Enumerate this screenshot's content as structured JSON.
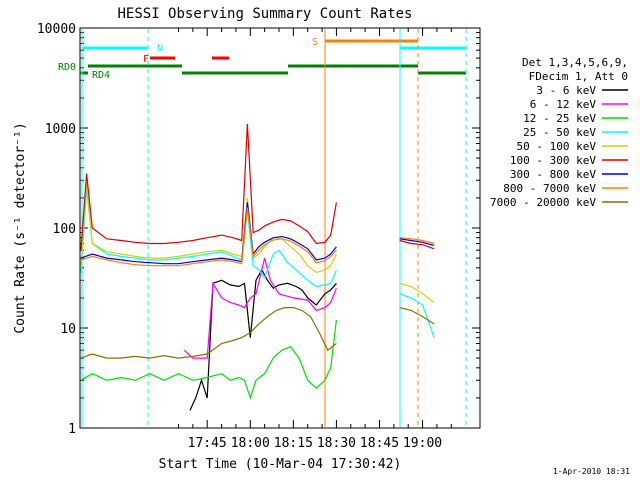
{
  "chart_data": {
    "type": "line",
    "title": "HESSI Observing Summary Count Rates",
    "xlabel": "Start Time (10-Mar-04 17:30:42)",
    "ylabel": "Count Rate (s⁻¹ detector⁻¹)",
    "x_ticks": [
      "17:45",
      "18:00",
      "18:15",
      "18:30",
      "18:45",
      "19:00"
    ],
    "x_tick_minutes": [
      795,
      810,
      825,
      840,
      855,
      870
    ],
    "xlim_minutes": [
      750.7,
      890
    ],
    "y_ticks": [
      "1",
      "10",
      "100",
      "1000",
      "10000"
    ],
    "y_tick_values": [
      1,
      10,
      100,
      1000,
      10000
    ],
    "ylim": [
      1,
      10000
    ],
    "y_scale": "log",
    "footer_date": "1-Apr-2010 18:31",
    "legend": {
      "header": [
        "Det 1,3,4,5,6,9,",
        "FDecim 1, Att 0"
      ],
      "entries": [
        {
          "label": "3 - 6 keV",
          "color": "#000000"
        },
        {
          "label": "6 - 12 keV",
          "color": "#ff00ff"
        },
        {
          "label": "12 - 25 keV",
          "color": "#00dd00"
        },
        {
          "label": "25 - 50 keV",
          "color": "#00ffff"
        },
        {
          "label": "50 - 100 keV",
          "color": "#d2d200"
        },
        {
          "label": "100 - 300 keV",
          "color": "#dd0000"
        },
        {
          "label": "300 - 800 keV",
          "color": "#0000dd"
        },
        {
          "label": "800 - 7000 keV",
          "color": "#ff8000"
        },
        {
          "label": "7000 - 20000 keV",
          "color": "#8b7000"
        }
      ]
    },
    "flags": [
      {
        "label": "N",
        "color": "#00ffff"
      },
      {
        "label": "F",
        "color": "#ff0000"
      },
      {
        "label": "S",
        "color": "#ff8000"
      },
      {
        "label": "RD0",
        "color": "#008000"
      },
      {
        "label": "RD4",
        "color": "#008000"
      }
    ],
    "series": [
      {
        "name": "3 - 6 keV",
        "color": "#000000",
        "points": [
          [
            789,
            1.5
          ],
          [
            791,
            2
          ],
          [
            793,
            3
          ],
          [
            795,
            2
          ],
          [
            797,
            28
          ],
          [
            800,
            30
          ],
          [
            803,
            27
          ],
          [
            806,
            26
          ],
          [
            808,
            28
          ],
          [
            810,
            8
          ],
          [
            812,
            30
          ],
          [
            814,
            38
          ],
          [
            816,
            30
          ],
          [
            818,
            25
          ],
          [
            820,
            27
          ],
          [
            823,
            28
          ],
          [
            826,
            26
          ],
          [
            828,
            24
          ],
          [
            830,
            20
          ],
          [
            833,
            17
          ],
          [
            836,
            22
          ],
          [
            838,
            24
          ],
          [
            840,
            28
          ]
        ]
      },
      {
        "name": "6 - 12 keV",
        "color": "#ff00ff",
        "points": [
          [
            787,
            6
          ],
          [
            790,
            5
          ],
          [
            793,
            5
          ],
          [
            795,
            5
          ],
          [
            797,
            28
          ],
          [
            800,
            20
          ],
          [
            803,
            18
          ],
          [
            806,
            17
          ],
          [
            808,
            16
          ],
          [
            810,
            20
          ],
          [
            812,
            22
          ],
          [
            815,
            50
          ],
          [
            817,
            30
          ],
          [
            820,
            22
          ],
          [
            825,
            20
          ],
          [
            830,
            19
          ],
          [
            833,
            15
          ],
          [
            836,
            16
          ],
          [
            838,
            18
          ],
          [
            840,
            25
          ]
        ]
      },
      {
        "name": "12 - 25 keV",
        "color": "#00dd00",
        "points": [
          [
            751,
            3
          ],
          [
            755,
            3.5
          ],
          [
            760,
            3
          ],
          [
            765,
            3.2
          ],
          [
            770,
            3
          ],
          [
            775,
            3.5
          ],
          [
            780,
            3
          ],
          [
            785,
            3.5
          ],
          [
            790,
            3
          ],
          [
            795,
            3.2
          ],
          [
            800,
            3.5
          ],
          [
            803,
            3
          ],
          [
            806,
            3.2
          ],
          [
            808,
            3
          ],
          [
            810,
            2
          ],
          [
            812,
            3
          ],
          [
            815,
            3.5
          ],
          [
            818,
            5
          ],
          [
            821,
            6
          ],
          [
            824,
            6.5
          ],
          [
            827,
            5
          ],
          [
            830,
            3
          ],
          [
            833,
            2.5
          ],
          [
            836,
            3
          ],
          [
            838,
            4
          ],
          [
            840,
            12
          ]
        ]
      },
      {
        "name": "25 - 50 keV",
        "color": "#00ffff",
        "points": [
          [
            751,
            35
          ],
          [
            753,
            250
          ],
          [
            755,
            70
          ],
          [
            760,
            55
          ],
          [
            765,
            52
          ],
          [
            770,
            50
          ],
          [
            775,
            48
          ],
          [
            780,
            48
          ],
          [
            785,
            50
          ],
          [
            790,
            52
          ],
          [
            795,
            55
          ],
          [
            800,
            58
          ],
          [
            804,
            52
          ],
          [
            807,
            48
          ],
          [
            809,
            150
          ],
          [
            811,
            42
          ],
          [
            813,
            38
          ],
          [
            815,
            32
          ],
          [
            818,
            55
          ],
          [
            820,
            60
          ],
          [
            823,
            45
          ],
          [
            826,
            38
          ],
          [
            830,
            30
          ],
          [
            833,
            26
          ],
          [
            836,
            27
          ],
          [
            838,
            28
          ],
          [
            840,
            38
          ]
        ]
      },
      {
        "name": "50 - 100 keV",
        "color": "#d2d200",
        "points": [
          [
            751,
            40
          ],
          [
            753,
            300
          ],
          [
            755,
            70
          ],
          [
            760,
            58
          ],
          [
            765,
            55
          ],
          [
            770,
            52
          ],
          [
            775,
            50
          ],
          [
            780,
            50
          ],
          [
            785,
            52
          ],
          [
            790,
            55
          ],
          [
            795,
            58
          ],
          [
            800,
            60
          ],
          [
            804,
            55
          ],
          [
            807,
            52
          ],
          [
            809,
            200
          ],
          [
            811,
            50
          ],
          [
            813,
            55
          ],
          [
            815,
            65
          ],
          [
            818,
            80
          ],
          [
            821,
            78
          ],
          [
            824,
            65
          ],
          [
            827,
            55
          ],
          [
            830,
            42
          ],
          [
            833,
            36
          ],
          [
            836,
            38
          ],
          [
            838,
            42
          ],
          [
            840,
            55
          ]
        ]
      },
      {
        "name": "100 - 300 keV",
        "color": "#dd0000",
        "points": [
          [
            751,
            60
          ],
          [
            753,
            350
          ],
          [
            755,
            100
          ],
          [
            760,
            78
          ],
          [
            765,
            75
          ],
          [
            770,
            72
          ],
          [
            775,
            70
          ],
          [
            780,
            70
          ],
          [
            785,
            72
          ],
          [
            790,
            75
          ],
          [
            795,
            80
          ],
          [
            800,
            85
          ],
          [
            804,
            80
          ],
          [
            807,
            75
          ],
          [
            809,
            1100
          ],
          [
            811,
            90
          ],
          [
            813,
            95
          ],
          [
            815,
            105
          ],
          [
            818,
            115
          ],
          [
            821,
            122
          ],
          [
            824,
            118
          ],
          [
            827,
            105
          ],
          [
            830,
            92
          ],
          [
            833,
            70
          ],
          [
            836,
            72
          ],
          [
            838,
            85
          ],
          [
            840,
            180
          ]
        ]
      },
      {
        "name": "300 - 800 keV",
        "color": "#0000dd",
        "points": [
          [
            751,
            50
          ],
          [
            755,
            55
          ],
          [
            760,
            50
          ],
          [
            765,
            48
          ],
          [
            770,
            46
          ],
          [
            775,
            45
          ],
          [
            780,
            44
          ],
          [
            785,
            44
          ],
          [
            790,
            46
          ],
          [
            795,
            48
          ],
          [
            800,
            50
          ],
          [
            804,
            48
          ],
          [
            807,
            46
          ],
          [
            809,
            180
          ],
          [
            811,
            55
          ],
          [
            813,
            65
          ],
          [
            815,
            72
          ],
          [
            818,
            80
          ],
          [
            821,
            82
          ],
          [
            824,
            78
          ],
          [
            827,
            70
          ],
          [
            830,
            62
          ],
          [
            833,
            48
          ],
          [
            836,
            50
          ],
          [
            838,
            55
          ],
          [
            840,
            65
          ]
        ]
      },
      {
        "name": "800 - 7000 keV",
        "color": "#ff8000",
        "points": [
          [
            751,
            48
          ],
          [
            755,
            52
          ],
          [
            760,
            48
          ],
          [
            765,
            45
          ],
          [
            770,
            43
          ],
          [
            775,
            42
          ],
          [
            780,
            42
          ],
          [
            785,
            42
          ],
          [
            790,
            44
          ],
          [
            795,
            46
          ],
          [
            800,
            48
          ],
          [
            804,
            46
          ],
          [
            807,
            44
          ],
          [
            809,
            160
          ],
          [
            811,
            52
          ],
          [
            813,
            60
          ],
          [
            815,
            68
          ],
          [
            818,
            76
          ],
          [
            821,
            78
          ],
          [
            824,
            74
          ],
          [
            827,
            66
          ],
          [
            830,
            58
          ],
          [
            833,
            45
          ],
          [
            836,
            47
          ],
          [
            838,
            52
          ],
          [
            840,
            60
          ]
        ]
      },
      {
        "name": "7000 - 20000 keV",
        "color": "#8b7000",
        "points": [
          [
            751,
            5
          ],
          [
            755,
            5.5
          ],
          [
            760,
            5
          ],
          [
            765,
            5
          ],
          [
            770,
            5.2
          ],
          [
            775,
            5
          ],
          [
            780,
            5.3
          ],
          [
            785,
            5
          ],
          [
            790,
            5.2
          ],
          [
            795,
            5.5
          ],
          [
            800,
            7
          ],
          [
            804,
            7.5
          ],
          [
            807,
            8
          ],
          [
            810,
            9
          ],
          [
            813,
            11
          ],
          [
            816,
            13
          ],
          [
            819,
            15
          ],
          [
            822,
            16
          ],
          [
            825,
            16
          ],
          [
            828,
            15
          ],
          [
            831,
            13
          ],
          [
            834,
            9
          ],
          [
            837,
            6
          ],
          [
            840,
            7
          ]
        ]
      }
    ],
    "post_series": [
      {
        "name": "100 - 300 keV",
        "color": "#dd0000",
        "points": [
          [
            862,
            75
          ],
          [
            866,
            70
          ],
          [
            870,
            68
          ],
          [
            874,
            62
          ]
        ]
      },
      {
        "name": "800 - 7000 keV",
        "color": "#ff8000",
        "points": [
          [
            862,
            80
          ],
          [
            866,
            78
          ],
          [
            870,
            75
          ],
          [
            874,
            70
          ]
        ]
      },
      {
        "name": "300 - 800 keV",
        "color": "#0000dd",
        "points": [
          [
            862,
            78
          ],
          [
            866,
            75
          ],
          [
            870,
            72
          ],
          [
            874,
            67
          ]
        ]
      },
      {
        "name": "50 - 100 keV",
        "color": "#d2d200",
        "points": [
          [
            862,
            28
          ],
          [
            866,
            26
          ],
          [
            870,
            22
          ],
          [
            874,
            18
          ]
        ]
      },
      {
        "name": "25 - 50 keV",
        "color": "#00ffff",
        "points": [
          [
            862,
            22
          ],
          [
            866,
            20
          ],
          [
            870,
            17
          ],
          [
            874,
            8
          ]
        ]
      },
      {
        "name": "7000 - 20000 keV",
        "color": "#8b7000",
        "points": [
          [
            862,
            16
          ],
          [
            866,
            15
          ],
          [
            870,
            13
          ],
          [
            874,
            11
          ]
        ]
      }
    ]
  }
}
